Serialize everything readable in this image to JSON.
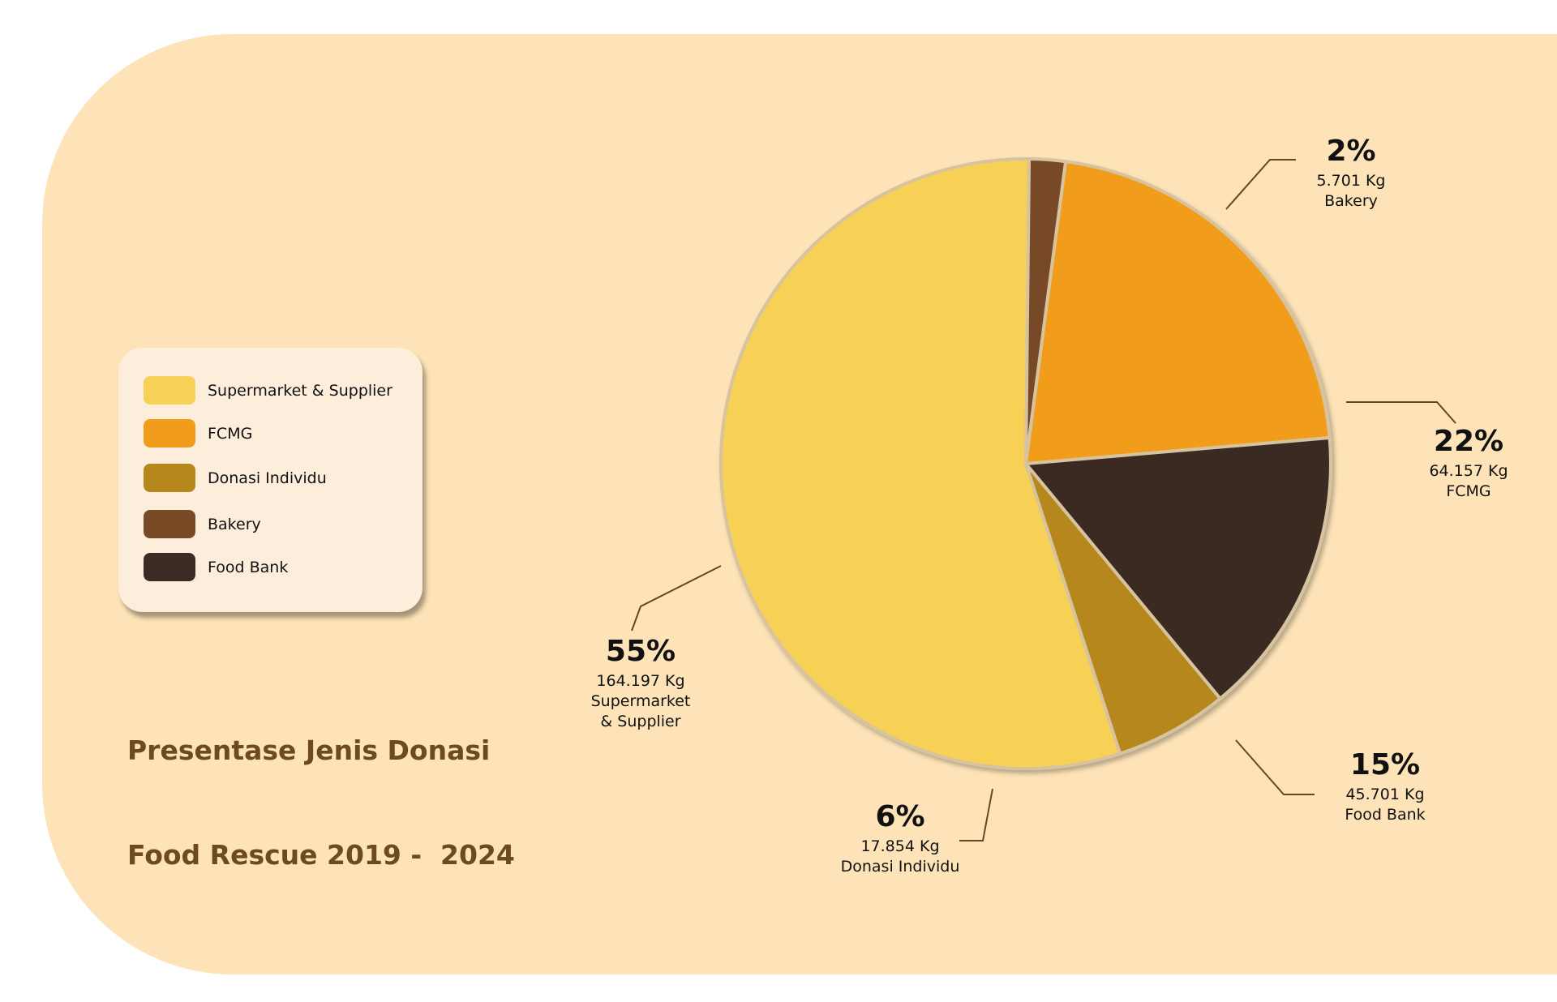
{
  "title": {
    "line1": "Presentase Jenis Donasi",
    "line2": "Food Rescue 2019 -  2024"
  },
  "colors": {
    "panel_bg": "#fde3b7",
    "legend_bg": "#fdeedc",
    "title": "#6e4a21",
    "leader": "#6b4520"
  },
  "chart_data": {
    "type": "pie",
    "title": "Presentase Jenis Donasi Food Rescue 2019 -  2024",
    "legend_position": "left",
    "unit": "Kg",
    "slices": [
      {
        "name": "Supermarket & Supplier",
        "percent": 55,
        "percent_label": "55%",
        "value": 164197,
        "value_label": "164.197 Kg",
        "label_lines": [
          "Supermarket",
          "& Supplier"
        ],
        "color": "#f6d155"
      },
      {
        "name": "Bakery",
        "percent": 2,
        "percent_label": "2%",
        "value": 5701,
        "value_label": "5.701 Kg",
        "label_lines": [
          "Bakery"
        ],
        "color": "#784a25"
      },
      {
        "name": "FCMG",
        "percent": 22,
        "percent_label": "22%",
        "value": 64157,
        "value_label": "64.157 Kg",
        "label_lines": [
          "FCMG"
        ],
        "color": "#f29c1b"
      },
      {
        "name": "Food Bank",
        "percent": 15,
        "percent_label": "15%",
        "value": 45701,
        "value_label": "45.701 Kg",
        "label_lines": [
          "Food Bank"
        ],
        "color": "#3a2c24"
      },
      {
        "name": "Donasi Individu",
        "percent": 6,
        "percent_label": "6%",
        "value": 17854,
        "value_label": "17.854 Kg",
        "label_lines": [
          "Donasi Individu"
        ],
        "color": "#b5871c"
      }
    ],
    "legend": [
      {
        "label": "Supermarket & Supplier",
        "color": "#f6d155"
      },
      {
        "label": "FCMG",
        "color": "#f29c1b"
      },
      {
        "label": "Donasi Individu",
        "color": "#b5871c"
      },
      {
        "label": "Bakery",
        "color": "#784a25"
      },
      {
        "label": "Food Bank",
        "color": "#3a2c24"
      }
    ]
  }
}
